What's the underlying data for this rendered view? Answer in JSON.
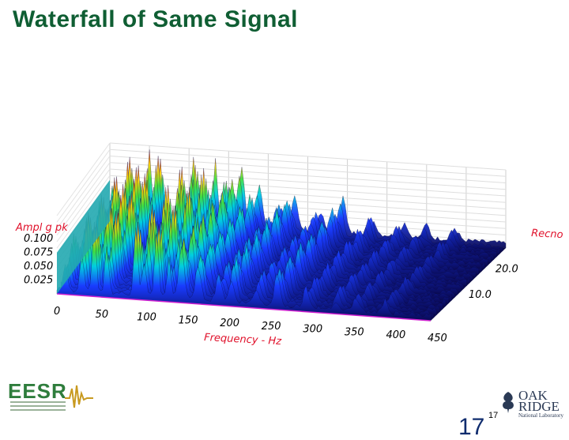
{
  "slide": {
    "title": "Waterfall of Same Signal",
    "page_number": "17",
    "page_number_ghost": "17",
    "logo_left_text": "EESR",
    "logo_right_top": "OAK",
    "logo_right_bottom": "RIDGE",
    "logo_right_sub": "National Laboratory"
  },
  "colors": {
    "title": "#0f5e33",
    "axis_title": "#e0102a",
    "surface_low": "#0a0a55",
    "surface_high": "#e01010"
  },
  "chart_data": {
    "type": "waterfall-3d",
    "title": "",
    "xlabel": "Frequency - Hz",
    "ylabel": "Recno",
    "zlabel": "Ampl g pk",
    "x_ticks": [
      "0",
      "50",
      "100",
      "150",
      "200",
      "250",
      "300",
      "350",
      "400",
      "450"
    ],
    "y_ticks": [
      "10.0",
      "20.0"
    ],
    "z_ticks": [
      "0.025",
      "0.050",
      "0.075",
      "0.100"
    ],
    "xlim": [
      0,
      450
    ],
    "ylim": [
      0,
      28
    ],
    "zlim": [
      0,
      0.11
    ],
    "peaks_hz": [
      {
        "freq": 10,
        "amp": 0.06
      },
      {
        "freq": 30,
        "amp": 0.1
      },
      {
        "freq": 45,
        "amp": 0.1
      },
      {
        "freq": 60,
        "amp": 0.1
      },
      {
        "freq": 95,
        "amp": 0.1
      },
      {
        "freq": 105,
        "amp": 0.09
      },
      {
        "freq": 120,
        "amp": 0.1
      },
      {
        "freq": 135,
        "amp": 0.07
      },
      {
        "freq": 150,
        "amp": 0.08
      },
      {
        "freq": 170,
        "amp": 0.06
      },
      {
        "freq": 195,
        "amp": 0.04
      },
      {
        "freq": 210,
        "amp": 0.055
      },
      {
        "freq": 240,
        "amp": 0.035
      },
      {
        "freq": 265,
        "amp": 0.05
      },
      {
        "freq": 300,
        "amp": 0.03
      },
      {
        "freq": 335,
        "amp": 0.025
      },
      {
        "freq": 360,
        "amp": 0.02
      },
      {
        "freq": 395,
        "amp": 0.02
      }
    ]
  }
}
